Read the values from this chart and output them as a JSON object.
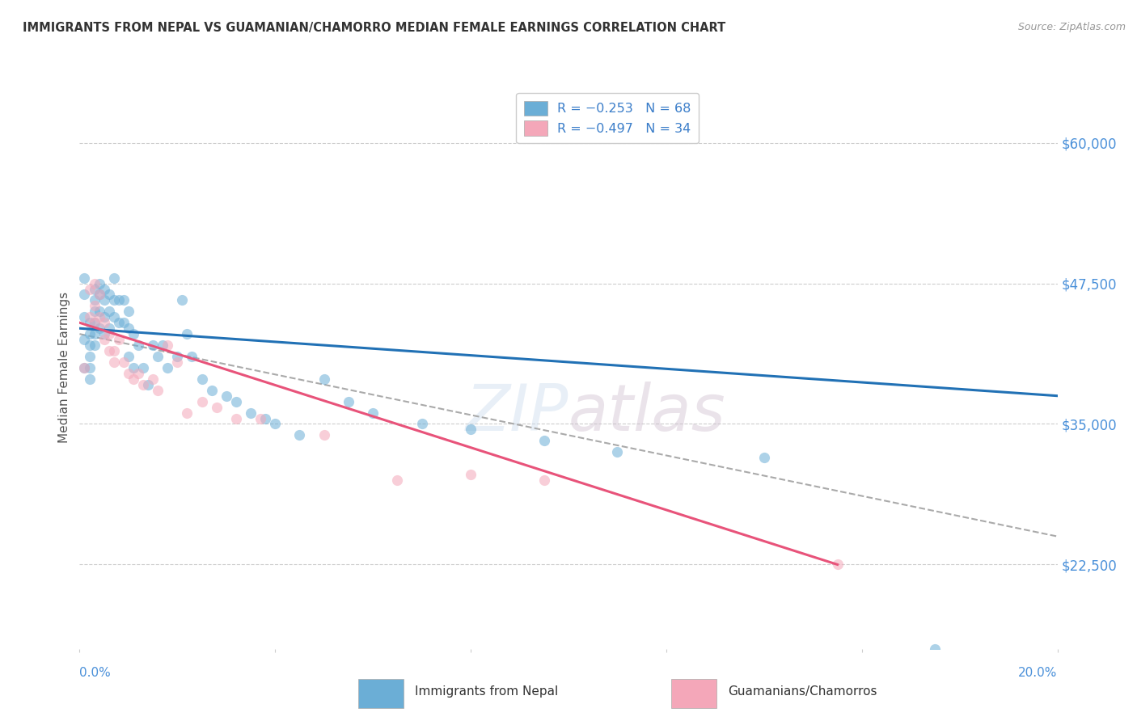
{
  "title": "IMMIGRANTS FROM NEPAL VS GUAMANIAN/CHAMORRO MEDIAN FEMALE EARNINGS CORRELATION CHART",
  "source": "Source: ZipAtlas.com",
  "ylabel": "Median Female Earnings",
  "xlim": [
    0.0,
    0.2
  ],
  "ylim": [
    15000,
    65000
  ],
  "yticks": [
    22500,
    35000,
    47500,
    60000
  ],
  "ytick_labels": [
    "$22,500",
    "$35,000",
    "$47,500",
    "$60,000"
  ],
  "xticks": [
    0.0,
    0.04,
    0.08,
    0.12,
    0.16,
    0.2
  ],
  "color_blue": "#6BAED6",
  "color_pink": "#F4A7B9",
  "trendline_blue": "#2171B5",
  "trendline_pink": "#E8537A",
  "trendline_gray": "#AAAAAA",
  "background": "#FFFFFF",
  "nepal_x": [
    0.001,
    0.001,
    0.001,
    0.001,
    0.001,
    0.002,
    0.002,
    0.002,
    0.002,
    0.002,
    0.002,
    0.003,
    0.003,
    0.003,
    0.003,
    0.003,
    0.003,
    0.004,
    0.004,
    0.004,
    0.004,
    0.005,
    0.005,
    0.005,
    0.005,
    0.006,
    0.006,
    0.006,
    0.007,
    0.007,
    0.007,
    0.008,
    0.008,
    0.009,
    0.009,
    0.01,
    0.01,
    0.01,
    0.011,
    0.011,
    0.012,
    0.013,
    0.014,
    0.015,
    0.016,
    0.017,
    0.018,
    0.02,
    0.021,
    0.022,
    0.023,
    0.025,
    0.027,
    0.03,
    0.032,
    0.035,
    0.038,
    0.04,
    0.045,
    0.05,
    0.055,
    0.06,
    0.07,
    0.08,
    0.095,
    0.11,
    0.14,
    0.175
  ],
  "nepal_y": [
    40000,
    42500,
    44500,
    46500,
    48000,
    43000,
    44000,
    42000,
    41000,
    40000,
    39000,
    47000,
    46000,
    45000,
    44000,
    43000,
    42000,
    47500,
    46500,
    45000,
    43500,
    47000,
    46000,
    44500,
    43000,
    46500,
    45000,
    43500,
    48000,
    46000,
    44500,
    46000,
    44000,
    46000,
    44000,
    45000,
    43500,
    41000,
    43000,
    40000,
    42000,
    40000,
    38500,
    42000,
    41000,
    42000,
    40000,
    41000,
    46000,
    43000,
    41000,
    39000,
    38000,
    37500,
    37000,
    36000,
    35500,
    35000,
    34000,
    39000,
    37000,
    36000,
    35000,
    34500,
    33500,
    32500,
    32000,
    15000
  ],
  "guam_x": [
    0.001,
    0.002,
    0.002,
    0.003,
    0.003,
    0.003,
    0.004,
    0.004,
    0.005,
    0.005,
    0.006,
    0.006,
    0.007,
    0.007,
    0.008,
    0.009,
    0.01,
    0.011,
    0.012,
    0.013,
    0.015,
    0.016,
    0.018,
    0.02,
    0.022,
    0.025,
    0.028,
    0.032,
    0.037,
    0.05,
    0.065,
    0.08,
    0.095,
    0.155
  ],
  "guam_y": [
    40000,
    47000,
    44500,
    47500,
    45500,
    44000,
    46500,
    44500,
    44000,
    42500,
    43000,
    41500,
    41500,
    40500,
    42500,
    40500,
    39500,
    39000,
    39500,
    38500,
    39000,
    38000,
    42000,
    40500,
    36000,
    37000,
    36500,
    35500,
    35500,
    34000,
    30000,
    30500,
    30000,
    22500
  ],
  "nepal_trendline_x": [
    0.0,
    0.2
  ],
  "nepal_trendline_y": [
    43500,
    37500
  ],
  "guam_trendline_x": [
    0.0,
    0.155
  ],
  "guam_trendline_y": [
    44000,
    22500
  ],
  "gray_trendline_x": [
    0.0,
    0.2
  ],
  "gray_trendline_y": [
    43000,
    25000
  ]
}
